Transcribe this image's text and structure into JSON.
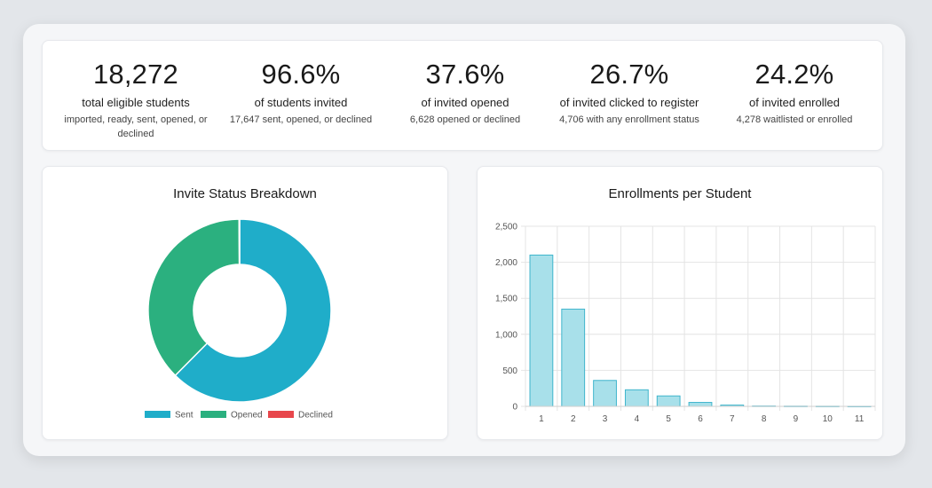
{
  "stats": [
    {
      "value": "18,272",
      "label": "total eligible students",
      "sub": "imported, ready, sent, opened, or declined"
    },
    {
      "value": "96.6%",
      "label": "of students invited",
      "sub": "17,647 sent, opened, or declined"
    },
    {
      "value": "37.6%",
      "label": "of invited opened",
      "sub": "6,628 opened or declined"
    },
    {
      "value": "26.7%",
      "label": "of invited clicked to register",
      "sub": "4,706 with any enrollment status"
    },
    {
      "value": "24.2%",
      "label": "of invited enrolled",
      "sub": "4,278 waitlisted or enrolled"
    }
  ],
  "chart_data": [
    {
      "type": "pie",
      "title": "Invite Status Breakdown",
      "categories": [
        "Sent",
        "Opened",
        "Declined"
      ],
      "values": [
        11019,
        6609,
        19
      ],
      "colors": [
        "#1fadc9",
        "#2bb07f",
        "#e8474c"
      ],
      "legend": "bottom"
    },
    {
      "type": "bar",
      "title": "Enrollments per Student",
      "categories": [
        "1",
        "2",
        "3",
        "4",
        "5",
        "6",
        "7",
        "8",
        "9",
        "10",
        "11"
      ],
      "values": [
        2100,
        1350,
        360,
        230,
        145,
        55,
        18,
        5,
        3,
        2,
        1
      ],
      "ylim": [
        0,
        2500
      ],
      "yticks": [
        "0",
        "500",
        "1,000",
        "1,500",
        "2,000",
        "2,500"
      ],
      "xlabel": "",
      "ylabel": "",
      "grid": true,
      "bar_color": "#a8e0ea",
      "bar_border": "#3fb5cc"
    }
  ]
}
